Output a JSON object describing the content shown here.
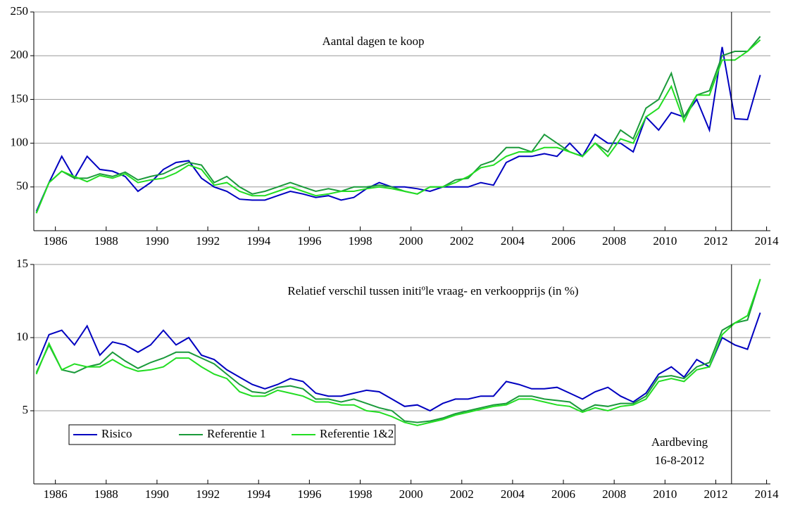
{
  "chart_data": [
    {
      "type": "line",
      "title": "Aantal dagen te koop",
      "x": [
        1985.25,
        1985.75,
        1986.25,
        1986.75,
        1987.25,
        1987.75,
        1988.25,
        1988.75,
        1989.25,
        1989.75,
        1990.25,
        1990.75,
        1991.25,
        1991.75,
        1992.25,
        1992.75,
        1993.25,
        1993.75,
        1994.25,
        1994.75,
        1995.25,
        1995.75,
        1996.25,
        1996.75,
        1997.25,
        1997.75,
        1998.25,
        1998.75,
        1999.25,
        1999.75,
        2000.25,
        2000.75,
        2001.25,
        2001.75,
        2002.25,
        2002.75,
        2003.25,
        2003.75,
        2004.25,
        2004.75,
        2005.25,
        2005.75,
        2006.25,
        2006.75,
        2007.25,
        2007.75,
        2008.25,
        2008.75,
        2009.25,
        2009.75,
        2010.25,
        2010.75,
        2011.25,
        2011.75,
        2012.25,
        2012.75,
        2013.25,
        2013.75
      ],
      "series": [
        {
          "color": "#0000c0",
          "values": [
            22,
            55,
            85,
            60,
            85,
            70,
            68,
            62,
            45,
            55,
            70,
            78,
            80,
            60,
            50,
            45,
            36,
            35,
            35,
            40,
            45,
            42,
            38,
            40,
            35,
            38,
            48,
            55,
            50,
            50,
            48,
            45,
            50,
            50,
            50,
            55,
            52,
            78,
            85,
            85,
            88,
            85,
            100,
            85,
            110,
            100,
            100,
            90,
            130,
            115,
            135,
            130,
            150,
            115,
            210,
            128,
            127,
            178
          ]
        },
        {
          "color": "#1a9a3a",
          "values": [
            20,
            55,
            68,
            60,
            60,
            65,
            62,
            67,
            58,
            62,
            65,
            72,
            78,
            75,
            55,
            62,
            50,
            42,
            45,
            50,
            55,
            50,
            45,
            48,
            45,
            50,
            50,
            52,
            50,
            45,
            42,
            50,
            50,
            58,
            60,
            75,
            80,
            95,
            95,
            90,
            110,
            100,
            90,
            85,
            100,
            90,
            115,
            105,
            140,
            150,
            180,
            130,
            155,
            160,
            200,
            205,
            205,
            222
          ]
        },
        {
          "color": "#22dd22",
          "values": [
            20,
            55,
            68,
            62,
            56,
            63,
            60,
            65,
            55,
            58,
            60,
            66,
            75,
            70,
            52,
            55,
            45,
            40,
            40,
            45,
            50,
            45,
            40,
            42,
            45,
            45,
            48,
            50,
            48,
            45,
            42,
            50,
            50,
            55,
            62,
            72,
            75,
            85,
            90,
            90,
            95,
            95,
            90,
            85,
            100,
            85,
            105,
            100,
            130,
            140,
            165,
            125,
            155,
            155,
            195,
            195,
            205,
            218
          ]
        }
      ],
      "xlim": [
        1985.15,
        2014.15
      ],
      "ylim": [
        0,
        250
      ],
      "xticks": [
        1986,
        1988,
        1990,
        1992,
        1994,
        1996,
        1998,
        2000,
        2002,
        2004,
        2006,
        2008,
        2010,
        2012,
        2014
      ],
      "yticks": [
        50,
        100,
        150,
        200,
        250
      ],
      "grid": true,
      "vline": 2012.62
    },
    {
      "type": "line",
      "title": "Relatief verschil tussen initiºle vraag- en verkoopprijs (in %)",
      "x": [
        1985.25,
        1985.75,
        1986.25,
        1986.75,
        1987.25,
        1987.75,
        1988.25,
        1988.75,
        1989.25,
        1989.75,
        1990.25,
        1990.75,
        1991.25,
        1991.75,
        1992.25,
        1992.75,
        1993.25,
        1993.75,
        1994.25,
        1994.75,
        1995.25,
        1995.75,
        1996.25,
        1996.75,
        1997.25,
        1997.75,
        1998.25,
        1998.75,
        1999.25,
        1999.75,
        2000.25,
        2000.75,
        2001.25,
        2001.75,
        2002.25,
        2002.75,
        2003.25,
        2003.75,
        2004.25,
        2004.75,
        2005.25,
        2005.75,
        2006.25,
        2006.75,
        2007.25,
        2007.75,
        2008.25,
        2008.75,
        2009.25,
        2009.75,
        2010.25,
        2010.75,
        2011.25,
        2011.75,
        2012.25,
        2012.75,
        2013.25,
        2013.75
      ],
      "series": [
        {
          "name": "Risico",
          "color": "#0000c0",
          "values": [
            8.1,
            10.2,
            10.5,
            9.5,
            10.8,
            8.8,
            9.7,
            9.5,
            9.0,
            9.5,
            10.5,
            9.5,
            10.0,
            8.8,
            8.5,
            7.8,
            7.3,
            6.8,
            6.5,
            6.8,
            7.2,
            7.0,
            6.2,
            6.0,
            6.0,
            6.2,
            6.4,
            6.3,
            5.8,
            5.3,
            5.4,
            5.0,
            5.5,
            5.8,
            5.8,
            6.0,
            6.0,
            7.0,
            6.8,
            6.5,
            6.5,
            6.6,
            6.2,
            5.8,
            6.3,
            6.6,
            6.0,
            5.6,
            6.2,
            7.5,
            8.0,
            7.3,
            8.5,
            8.0,
            10.0,
            9.5,
            9.2,
            11.7
          ]
        },
        {
          "name": "Referentie 1",
          "color": "#1a9a3a",
          "values": [
            7.6,
            9.5,
            7.8,
            7.6,
            8.0,
            8.2,
            9.0,
            8.4,
            7.9,
            8.3,
            8.6,
            9.0,
            9.0,
            8.6,
            8.2,
            7.5,
            6.8,
            6.3,
            6.2,
            6.6,
            6.7,
            6.5,
            5.8,
            5.8,
            5.6,
            5.8,
            5.5,
            5.2,
            5.0,
            4.3,
            4.2,
            4.3,
            4.5,
            4.8,
            5.0,
            5.2,
            5.4,
            5.5,
            6.0,
            6.0,
            5.8,
            5.7,
            5.6,
            5.0,
            5.4,
            5.3,
            5.5,
            5.5,
            6.0,
            7.3,
            7.4,
            7.2,
            8.0,
            8.3,
            10.5,
            11.0,
            11.2,
            14.0
          ]
        },
        {
          "name": "Referentie 1&2",
          "color": "#22dd22",
          "values": [
            7.5,
            9.6,
            7.8,
            8.2,
            8.0,
            8.0,
            8.5,
            8.0,
            7.7,
            7.8,
            8.0,
            8.6,
            8.6,
            8.0,
            7.5,
            7.2,
            6.3,
            6.0,
            6.0,
            6.4,
            6.2,
            6.0,
            5.6,
            5.6,
            5.4,
            5.4,
            5.0,
            4.9,
            4.6,
            4.2,
            4.0,
            4.2,
            4.4,
            4.7,
            4.9,
            5.1,
            5.3,
            5.4,
            5.8,
            5.8,
            5.6,
            5.4,
            5.3,
            4.9,
            5.2,
            5.0,
            5.3,
            5.4,
            5.8,
            7.0,
            7.2,
            7.0,
            7.8,
            8.0,
            10.2,
            11.0,
            11.5,
            14.0
          ]
        }
      ],
      "xlim": [
        1985.15,
        2014.15
      ],
      "ylim": [
        0,
        15
      ],
      "xticks": [
        1986,
        1988,
        1990,
        1992,
        1994,
        1996,
        1998,
        2000,
        2002,
        2004,
        2006,
        2008,
        2010,
        2012,
        2014
      ],
      "yticks": [
        5,
        10,
        15
      ],
      "grid": true,
      "legend": "lower left",
      "vline": 2012.62,
      "annotation": [
        "Aardbeving",
        "16-8-2012"
      ]
    }
  ]
}
